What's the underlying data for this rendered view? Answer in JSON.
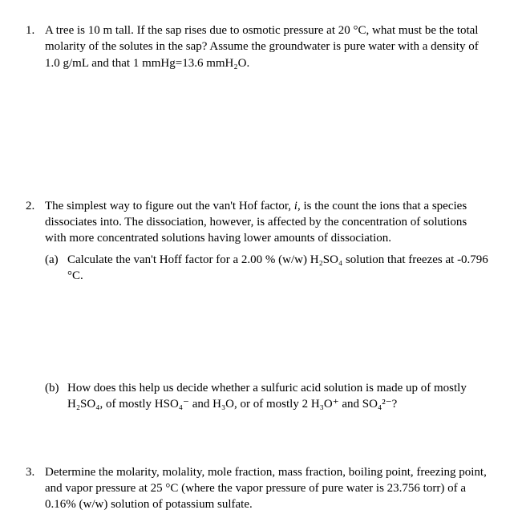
{
  "q1": {
    "num": "1.",
    "text": "A tree is 10 m tall. If the sap rises due to osmotic pressure at 20 °C, what must be the total molarity of the solutes in the sap? Assume the groundwater is pure water with a density of 1.0 g/mL and that 1 mmHg=13.6 mmH₂O."
  },
  "q2": {
    "num": "2.",
    "intro_pre": "The simplest way to figure out the van't Hof factor, ",
    "intro_i": "i",
    "intro_post": ", is the count the ions that a species dissociates into. The dissociation, however, is affected by the concentration of solutions with more concentrated solutions having lower amounts of dissociation.",
    "a": {
      "num": "(a)",
      "text": "Calculate the van't Hoff factor for a 2.00 % (w/w) H₂SO₄ solution that freezes at -0.796 °C."
    },
    "b": {
      "num": "(b)",
      "text": "How does this help us decide whether a sulfuric acid solution is made up of mostly H₂SO₄, of mostly HSO₄⁻ and H₃O, or of mostly 2 H₃O⁺ and SO₄²⁻?"
    }
  },
  "q3": {
    "num": "3.",
    "text": "Determine the molarity, molality, mole fraction, mass fraction, boiling point, freezing point, and vapor pressure at 25 °C (where the vapor pressure of pure water is 23.756 torr) of a 0.16% (w/w) solution of potassium sulfate."
  }
}
